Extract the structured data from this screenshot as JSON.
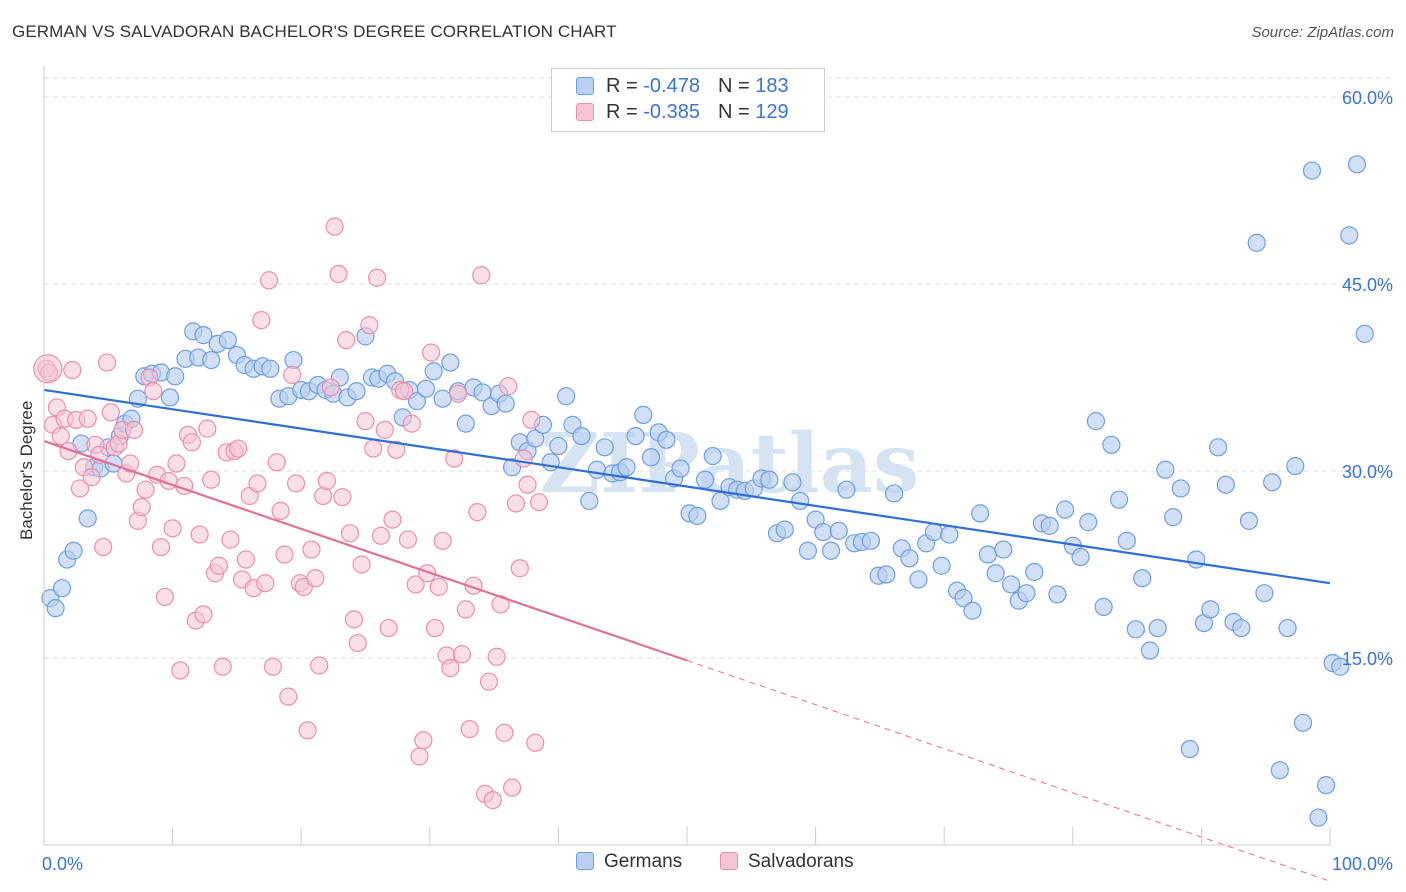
{
  "header": {
    "title": "GERMAN VS SALVADORAN BACHELOR'S DEGREE CORRELATION CHART",
    "source": "Source: ZipAtlas.com"
  },
  "legend": {
    "row1": {
      "r_label": "R = ",
      "r_value": "-0.478",
      "n_label": "N = ",
      "n_value": "183"
    },
    "row2": {
      "r_label": "R = ",
      "r_value": "-0.385",
      "n_label": "N = ",
      "n_value": "129"
    }
  },
  "bottom_legend": {
    "german": "Germans",
    "salvadoran": "Salvadorans"
  },
  "colors": {
    "german_fill": "#b9d0f2",
    "german_stroke": "#6f9fe0",
    "german_line": "#2f6fd4",
    "salv_fill": "#f7c4d4",
    "salv_stroke": "#ea8fae",
    "salv_line": "#e0709a",
    "grid": "#dddddd",
    "tick_text": "#3b73d1"
  },
  "chart_data": {
    "type": "scatter",
    "title": "GERMAN VS SALVADORAN BACHELOR'S DEGREE CORRELATION CHART",
    "xlabel": "",
    "ylabel": "Bachelor's Degree",
    "xlim": [
      0,
      100
    ],
    "ylim": [
      0,
      63
    ],
    "x_tick_labels": [
      "0.0%",
      "100.0%"
    ],
    "y_ticks": [
      15,
      30,
      45,
      60
    ],
    "y_tick_labels": [
      "15.0%",
      "30.0%",
      "45.0%",
      "60.0%"
    ],
    "grid": true,
    "legend_position": "top-center",
    "watermark": "ZIPatlas",
    "series": [
      {
        "name": "Germans",
        "r": -0.478,
        "n": 183,
        "trend": {
          "x": [
            0,
            100
          ],
          "y": [
            36.5,
            21.0
          ],
          "dashed_after": null
        },
        "points": [
          [
            0.5,
            19.8
          ],
          [
            0.9,
            19.0
          ],
          [
            1.4,
            20.6
          ],
          [
            1.8,
            22.9
          ],
          [
            2.3,
            23.6
          ],
          [
            2.9,
            32.2
          ],
          [
            3.4,
            26.2
          ],
          [
            3.9,
            30.3
          ],
          [
            4.4,
            30.2
          ],
          [
            5.0,
            31.9
          ],
          [
            5.4,
            30.6
          ],
          [
            5.9,
            32.8
          ],
          [
            6.3,
            33.8
          ],
          [
            6.8,
            34.2
          ],
          [
            7.3,
            35.8
          ],
          [
            7.8,
            37.6
          ],
          [
            8.4,
            37.8
          ],
          [
            9.1,
            37.9
          ],
          [
            9.8,
            35.9
          ],
          [
            10.2,
            37.6
          ],
          [
            11.0,
            39.0
          ],
          [
            11.6,
            41.2
          ],
          [
            12.0,
            39.1
          ],
          [
            12.4,
            40.9
          ],
          [
            13.0,
            38.9
          ],
          [
            13.5,
            40.2
          ],
          [
            14.3,
            40.5
          ],
          [
            15.0,
            39.3
          ],
          [
            15.6,
            38.5
          ],
          [
            16.3,
            38.2
          ],
          [
            17.0,
            38.4
          ],
          [
            17.6,
            38.2
          ],
          [
            18.3,
            35.8
          ],
          [
            19.0,
            36.0
          ],
          [
            19.4,
            38.9
          ],
          [
            20.0,
            36.5
          ],
          [
            20.6,
            36.4
          ],
          [
            21.3,
            36.9
          ],
          [
            21.9,
            36.5
          ],
          [
            22.5,
            36.2
          ],
          [
            23.0,
            37.5
          ],
          [
            23.6,
            35.9
          ],
          [
            24.3,
            36.4
          ],
          [
            25.0,
            40.8
          ],
          [
            25.5,
            37.5
          ],
          [
            26.0,
            37.4
          ],
          [
            26.7,
            37.8
          ],
          [
            27.3,
            37.2
          ],
          [
            27.9,
            34.3
          ],
          [
            28.4,
            36.5
          ],
          [
            29.0,
            35.6
          ],
          [
            29.7,
            36.6
          ],
          [
            30.3,
            38.0
          ],
          [
            31.0,
            35.8
          ],
          [
            31.6,
            38.7
          ],
          [
            32.2,
            36.4
          ],
          [
            32.8,
            33.8
          ],
          [
            33.4,
            36.7
          ],
          [
            34.1,
            36.3
          ],
          [
            34.8,
            35.2
          ],
          [
            35.4,
            36.2
          ],
          [
            35.9,
            35.4
          ],
          [
            36.4,
            30.3
          ],
          [
            37.0,
            32.3
          ],
          [
            37.6,
            31.6
          ],
          [
            38.2,
            32.6
          ],
          [
            38.8,
            33.7
          ],
          [
            39.4,
            30.7
          ],
          [
            40.0,
            32.0
          ],
          [
            40.6,
            36.0
          ],
          [
            41.1,
            33.7
          ],
          [
            41.8,
            32.8
          ],
          [
            42.4,
            27.6
          ],
          [
            43.0,
            30.1
          ],
          [
            43.6,
            31.9
          ],
          [
            44.2,
            29.8
          ],
          [
            44.8,
            29.9
          ],
          [
            45.3,
            30.3
          ],
          [
            46.0,
            32.8
          ],
          [
            46.6,
            34.5
          ],
          [
            47.2,
            31.1
          ],
          [
            47.8,
            33.1
          ],
          [
            48.4,
            32.5
          ],
          [
            49.0,
            29.4
          ],
          [
            49.5,
            30.2
          ],
          [
            50.2,
            26.6
          ],
          [
            50.8,
            26.4
          ],
          [
            51.4,
            29.3
          ],
          [
            52.0,
            31.2
          ],
          [
            52.6,
            27.6
          ],
          [
            53.3,
            28.7
          ],
          [
            53.9,
            28.5
          ],
          [
            54.5,
            28.4
          ],
          [
            55.2,
            28.6
          ],
          [
            55.8,
            29.4
          ],
          [
            56.4,
            29.3
          ],
          [
            57.0,
            25.0
          ],
          [
            57.6,
            25.3
          ],
          [
            58.2,
            29.1
          ],
          [
            58.8,
            27.6
          ],
          [
            59.4,
            23.6
          ],
          [
            60.0,
            26.1
          ],
          [
            60.6,
            25.1
          ],
          [
            61.2,
            23.6
          ],
          [
            61.8,
            25.2
          ],
          [
            62.4,
            28.5
          ],
          [
            63.0,
            24.2
          ],
          [
            63.6,
            24.3
          ],
          [
            64.3,
            24.4
          ],
          [
            64.9,
            21.6
          ],
          [
            65.5,
            21.7
          ],
          [
            66.1,
            28.2
          ],
          [
            66.7,
            23.8
          ],
          [
            67.3,
            23.0
          ],
          [
            68.0,
            21.3
          ],
          [
            68.6,
            24.2
          ],
          [
            69.2,
            25.1
          ],
          [
            69.8,
            22.4
          ],
          [
            70.4,
            24.9
          ],
          [
            71.0,
            20.4
          ],
          [
            71.5,
            19.8
          ],
          [
            72.2,
            18.8
          ],
          [
            72.8,
            26.6
          ],
          [
            73.4,
            23.3
          ],
          [
            74.0,
            21.8
          ],
          [
            74.6,
            23.7
          ],
          [
            75.2,
            20.9
          ],
          [
            75.8,
            19.6
          ],
          [
            76.4,
            20.2
          ],
          [
            77.0,
            21.9
          ],
          [
            77.6,
            25.8
          ],
          [
            78.2,
            25.6
          ],
          [
            78.8,
            20.1
          ],
          [
            79.4,
            26.9
          ],
          [
            80.0,
            24.0
          ],
          [
            80.6,
            23.1
          ],
          [
            81.2,
            25.9
          ],
          [
            81.8,
            34.0
          ],
          [
            82.4,
            19.1
          ],
          [
            83.0,
            32.1
          ],
          [
            83.6,
            27.7
          ],
          [
            84.2,
            24.4
          ],
          [
            84.9,
            17.3
          ],
          [
            85.4,
            21.4
          ],
          [
            86.0,
            15.6
          ],
          [
            86.6,
            17.4
          ],
          [
            87.2,
            30.1
          ],
          [
            87.8,
            26.3
          ],
          [
            88.4,
            28.6
          ],
          [
            89.1,
            7.7
          ],
          [
            89.6,
            22.9
          ],
          [
            90.2,
            17.8
          ],
          [
            90.7,
            18.9
          ],
          [
            91.3,
            31.9
          ],
          [
            91.9,
            28.9
          ],
          [
            92.5,
            17.9
          ],
          [
            93.1,
            17.4
          ],
          [
            93.7,
            26.0
          ],
          [
            94.3,
            48.3
          ],
          [
            94.9,
            20.2
          ],
          [
            95.5,
            29.1
          ],
          [
            96.1,
            6.0
          ],
          [
            96.7,
            17.4
          ],
          [
            97.3,
            30.4
          ],
          [
            97.9,
            9.8
          ],
          [
            98.6,
            54.1
          ],
          [
            99.1,
            2.2
          ],
          [
            99.7,
            4.8
          ],
          [
            100.2,
            14.6
          ],
          [
            100.8,
            14.3
          ],
          [
            101.5,
            48.9
          ],
          [
            102.1,
            54.6
          ],
          [
            102.7,
            41.0
          ]
        ]
      },
      {
        "name": "Salvadorans",
        "r": -0.385,
        "n": 129,
        "trend": {
          "x": [
            0,
            50,
            100
          ],
          "y": [
            32.4,
            14.8,
            -2.9
          ],
          "dashed_after": 50
        },
        "points": [
          [
            0.2,
            38.2
          ],
          [
            0.4,
            37.9
          ],
          [
            0.7,
            33.7
          ],
          [
            1.0,
            35.1
          ],
          [
            1.3,
            32.8
          ],
          [
            1.6,
            34.2
          ],
          [
            1.9,
            31.6
          ],
          [
            2.2,
            38.1
          ],
          [
            2.5,
            34.1
          ],
          [
            2.8,
            28.6
          ],
          [
            3.1,
            30.3
          ],
          [
            3.4,
            34.2
          ],
          [
            3.7,
            29.5
          ],
          [
            4.0,
            32.1
          ],
          [
            4.3,
            31.3
          ],
          [
            4.6,
            23.9
          ],
          [
            4.9,
            38.7
          ],
          [
            5.2,
            34.7
          ],
          [
            5.5,
            31.9
          ],
          [
            5.8,
            32.2
          ],
          [
            6.1,
            33.3
          ],
          [
            6.4,
            29.8
          ],
          [
            6.7,
            30.6
          ],
          [
            7.0,
            33.3
          ],
          [
            7.3,
            26.0
          ],
          [
            7.6,
            27.1
          ],
          [
            7.9,
            28.5
          ],
          [
            8.2,
            37.5
          ],
          [
            8.5,
            36.4
          ],
          [
            8.8,
            29.7
          ],
          [
            9.1,
            23.9
          ],
          [
            9.4,
            19.9
          ],
          [
            9.7,
            29.2
          ],
          [
            10.0,
            25.4
          ],
          [
            10.3,
            30.6
          ],
          [
            10.6,
            14.0
          ],
          [
            10.9,
            28.8
          ],
          [
            11.2,
            32.9
          ],
          [
            11.5,
            32.3
          ],
          [
            11.8,
            18.0
          ],
          [
            12.1,
            24.9
          ],
          [
            12.4,
            18.5
          ],
          [
            12.7,
            33.4
          ],
          [
            13.0,
            29.3
          ],
          [
            13.3,
            21.8
          ],
          [
            13.6,
            22.4
          ],
          [
            13.9,
            14.3
          ],
          [
            14.2,
            31.5
          ],
          [
            14.5,
            24.5
          ],
          [
            14.8,
            31.6
          ],
          [
            15.1,
            31.8
          ],
          [
            15.4,
            21.3
          ],
          [
            15.7,
            22.9
          ],
          [
            16.0,
            28.0
          ],
          [
            16.3,
            20.6
          ],
          [
            16.6,
            29.0
          ],
          [
            16.9,
            42.1
          ],
          [
            17.2,
            21.0
          ],
          [
            17.5,
            45.3
          ],
          [
            17.8,
            14.3
          ],
          [
            18.1,
            30.7
          ],
          [
            18.4,
            26.8
          ],
          [
            18.7,
            23.3
          ],
          [
            19.0,
            11.9
          ],
          [
            19.3,
            37.7
          ],
          [
            19.6,
            29.0
          ],
          [
            19.9,
            21.0
          ],
          [
            20.2,
            20.7
          ],
          [
            20.5,
            9.2
          ],
          [
            20.8,
            23.7
          ],
          [
            21.1,
            21.4
          ],
          [
            21.4,
            14.4
          ],
          [
            21.7,
            28.0
          ],
          [
            22.0,
            29.2
          ],
          [
            22.3,
            36.7
          ],
          [
            22.6,
            49.6
          ],
          [
            22.9,
            45.8
          ],
          [
            23.2,
            27.9
          ],
          [
            23.5,
            40.5
          ],
          [
            23.8,
            25.0
          ],
          [
            24.1,
            18.1
          ],
          [
            24.4,
            16.2
          ],
          [
            24.7,
            22.5
          ],
          [
            25.0,
            34.0
          ],
          [
            25.3,
            41.7
          ],
          [
            25.6,
            31.8
          ],
          [
            25.9,
            45.5
          ],
          [
            26.2,
            24.8
          ],
          [
            26.5,
            33.3
          ],
          [
            26.8,
            17.4
          ],
          [
            27.1,
            26.1
          ],
          [
            27.4,
            31.7
          ],
          [
            27.7,
            36.5
          ],
          [
            28.0,
            36.4
          ],
          [
            28.3,
            24.5
          ],
          [
            28.6,
            33.8
          ],
          [
            28.9,
            20.9
          ],
          [
            29.2,
            7.1
          ],
          [
            29.5,
            8.4
          ],
          [
            29.8,
            21.8
          ],
          [
            30.1,
            39.5
          ],
          [
            30.4,
            17.4
          ],
          [
            30.7,
            20.7
          ],
          [
            31.0,
            24.4
          ],
          [
            31.3,
            15.2
          ],
          [
            31.6,
            14.2
          ],
          [
            31.9,
            31.0
          ],
          [
            32.2,
            36.2
          ],
          [
            32.5,
            15.3
          ],
          [
            32.8,
            18.9
          ],
          [
            33.1,
            9.3
          ],
          [
            33.4,
            20.8
          ],
          [
            33.7,
            26.7
          ],
          [
            34.0,
            45.7
          ],
          [
            34.3,
            4.1
          ],
          [
            34.6,
            13.1
          ],
          [
            34.9,
            3.6
          ],
          [
            35.2,
            15.1
          ],
          [
            35.5,
            19.3
          ],
          [
            35.8,
            9.0
          ],
          [
            36.1,
            36.8
          ],
          [
            36.4,
            4.6
          ],
          [
            36.7,
            27.4
          ],
          [
            37.0,
            22.2
          ],
          [
            37.3,
            31.0
          ],
          [
            37.6,
            28.9
          ],
          [
            37.9,
            34.1
          ],
          [
            38.2,
            8.2
          ],
          [
            38.5,
            27.5
          ]
        ]
      }
    ]
  }
}
